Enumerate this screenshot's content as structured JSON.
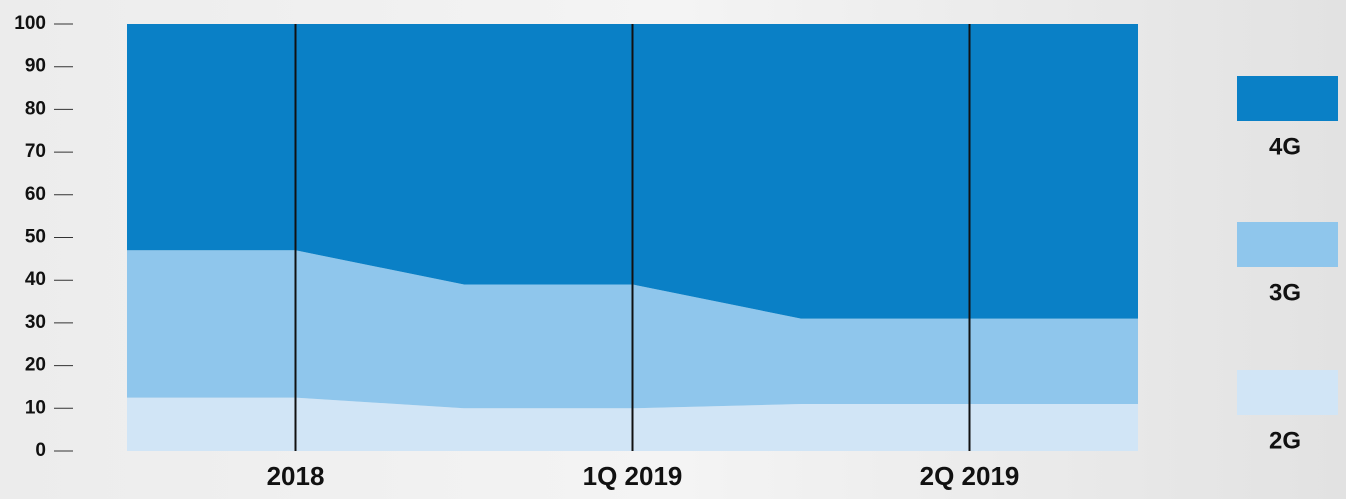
{
  "chart_data": {
    "type": "stacked_area",
    "categories": [
      "2018",
      "1Q 2019",
      "2Q 2019"
    ],
    "series": [
      {
        "name": "2G",
        "color": "#d1e5f6",
        "values": [
          12.5,
          10,
          11
        ]
      },
      {
        "name": "3G",
        "color": "#8fc6ec",
        "values": [
          34.5,
          29,
          20
        ]
      },
      {
        "name": "4G",
        "color": "#0a80c6",
        "values": [
          53,
          61,
          69
        ]
      }
    ],
    "ylim": [
      0,
      100
    ],
    "yticks": [
      0,
      10,
      20,
      30,
      40,
      50,
      60,
      70,
      80,
      90,
      100
    ]
  }
}
